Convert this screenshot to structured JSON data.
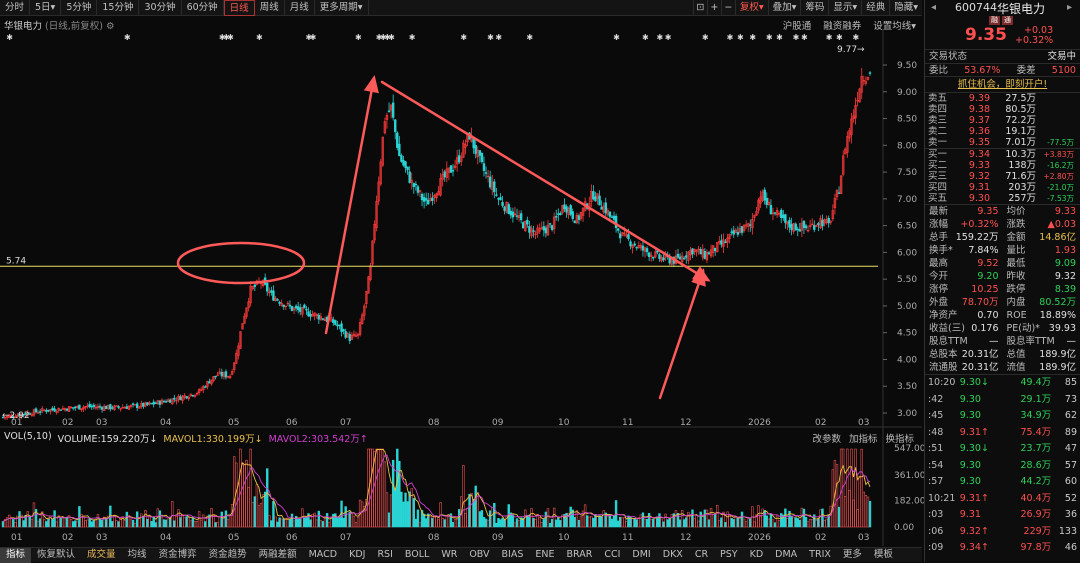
{
  "toolbar": {
    "periods": [
      "分时",
      "5日▾",
      "5分钟",
      "15分钟",
      "30分钟",
      "60分钟",
      "日线",
      "周线",
      "月线",
      "更多周期▾"
    ],
    "active_period": "日线",
    "tools": [
      "⊡",
      "+",
      "−",
      "复权▾",
      "叠加▾",
      "筹码",
      "显示▾",
      "经典",
      "隐藏▾"
    ],
    "tool_icons": [
      "copy-icon",
      "zoom-in-icon",
      "zoom-out-icon",
      "",
      "",
      "",
      "",
      "",
      ""
    ]
  },
  "chart": {
    "title": "华银电力",
    "subtitle": "(日线,前复权)",
    "links": [
      "沪股通",
      "融资融券",
      "设置均线▾"
    ],
    "y_ticks": [
      "9.50",
      "9.00",
      "8.50",
      "8.00",
      "7.50",
      "7.00",
      "6.50",
      "6.00",
      "5.50",
      "5.00",
      "4.50",
      "4.00",
      "3.50",
      "3.00"
    ],
    "x_ticks": [
      "01",
      "02",
      "03",
      "04",
      "05",
      "06",
      "07",
      "08",
      "09",
      "10",
      "11",
      "12",
      "2026",
      "02",
      "03"
    ],
    "hline_label": "5.74",
    "high_label": "9.77→",
    "low_label": "←2.92",
    "event_marker": "✱"
  },
  "volume": {
    "label": "VOL(5,10)",
    "volume_text": "VOLUME:159.220万↓",
    "ma1_text": "MAVOL1:330.199万↓",
    "ma2_text": "MAVOL2:303.542万↑",
    "links": [
      "改参数",
      "加指标",
      "换指标"
    ],
    "y_ticks": [
      "547.00",
      "361.00",
      "182.00",
      "0.00"
    ]
  },
  "indicators": [
    "指标",
    "恢复默认",
    "成交量",
    "均线",
    "资金博弈",
    "资金趋势",
    "两融差额",
    "MACD",
    "KDJ",
    "RSI",
    "BOLL",
    "WR",
    "OBV",
    "BIAS",
    "ENE",
    "BRAR",
    "CCI",
    "DMI",
    "DKX",
    "CR",
    "PSY",
    "KD",
    "DMA",
    "TRIX",
    "更多",
    "模板"
  ],
  "panel": {
    "code": "600744",
    "name": "华银电力",
    "badges": [
      "融",
      "通"
    ],
    "price": "9.35",
    "change": "+0.03",
    "change_pct": "+0.32%",
    "status_label": "交易状态",
    "status_value": "交易中",
    "weibi_label": "委比",
    "weibi_value": "53.67%",
    "weicha_label": "委差",
    "weicha_value": "5100",
    "promo": "抓住机会，即刻开户!",
    "asks": [
      {
        "label": "卖五",
        "price": "9.39",
        "vol": "27.5万",
        "chg": ""
      },
      {
        "label": "卖四",
        "price": "9.38",
        "vol": "80.5万",
        "chg": ""
      },
      {
        "label": "卖三",
        "price": "9.37",
        "vol": "72.2万",
        "chg": ""
      },
      {
        "label": "卖二",
        "price": "9.36",
        "vol": "19.1万",
        "chg": ""
      },
      {
        "label": "卖一",
        "price": "9.35",
        "vol": "7.01万",
        "chg": "-77.5万"
      }
    ],
    "bids": [
      {
        "label": "买一",
        "price": "9.34",
        "vol": "10.3万",
        "chg": "+3.83万"
      },
      {
        "label": "买二",
        "price": "9.33",
        "vol": "138万",
        "chg": "-16.2万"
      },
      {
        "label": "买三",
        "price": "9.32",
        "vol": "71.6万",
        "chg": "+2.80万"
      },
      {
        "label": "买四",
        "price": "9.31",
        "vol": "203万",
        "chg": "-21.0万"
      },
      {
        "label": "买五",
        "price": "9.30",
        "vol": "257万",
        "chg": "-7.53万"
      }
    ],
    "stats": [
      {
        "label": "最新",
        "value": "9.35",
        "color": "r"
      },
      {
        "label": "均价",
        "value": "9.33",
        "color": "r"
      },
      {
        "label": "涨幅",
        "value": "+0.32%",
        "color": "r"
      },
      {
        "label": "涨跌",
        "value": "▲0.03",
        "color": "r"
      },
      {
        "label": "总手",
        "value": "159.22万",
        "color": "w"
      },
      {
        "label": "金额",
        "value": "14.86亿",
        "color": "y"
      },
      {
        "label": "换手*",
        "value": "7.84%",
        "color": "w"
      },
      {
        "label": "量比",
        "value": "1.93",
        "color": "r"
      },
      {
        "label": "最高",
        "value": "9.52",
        "color": "r"
      },
      {
        "label": "最低",
        "value": "9.09",
        "color": "g"
      },
      {
        "label": "今开",
        "value": "9.20",
        "color": "g"
      },
      {
        "label": "昨收",
        "value": "9.32",
        "color": "w"
      },
      {
        "label": "涨停",
        "value": "10.25",
        "color": "r"
      },
      {
        "label": "跌停",
        "value": "8.39",
        "color": "g"
      },
      {
        "label": "外盘",
        "value": "78.70万",
        "color": "r"
      },
      {
        "label": "内盘",
        "value": "80.52万",
        "color": "g"
      },
      {
        "label": "净资产",
        "value": "0.70",
        "color": "w"
      },
      {
        "label": "ROE",
        "value": "18.89%",
        "color": "w"
      },
      {
        "label": "收益(三)",
        "value": "0.176",
        "color": "w"
      },
      {
        "label": "PE(动)*",
        "value": "39.93",
        "color": "w"
      },
      {
        "label": "股息TTM",
        "value": "—",
        "color": "w"
      },
      {
        "label": "股息率TTM",
        "value": "—",
        "color": "w"
      },
      {
        "label": "总股本",
        "value": "20.31亿",
        "color": "w"
      },
      {
        "label": "总值",
        "value": "189.9亿",
        "color": "w"
      },
      {
        "label": "流通股",
        "value": "20.31亿",
        "color": "w"
      },
      {
        "label": "流值",
        "value": "189.9亿",
        "color": "w"
      }
    ],
    "ticks": [
      {
        "time": "10:20",
        "price": "9.30",
        "arrow": "↓",
        "pc": "g",
        "vol": "49.4万",
        "vc": "g",
        "num": "85"
      },
      {
        "time": ":42",
        "price": "9.30",
        "arrow": "",
        "pc": "g",
        "vol": "29.1万",
        "vc": "g",
        "num": "73"
      },
      {
        "time": ":45",
        "price": "9.30",
        "arrow": "",
        "pc": "g",
        "vol": "34.9万",
        "vc": "g",
        "num": "62"
      },
      {
        "time": ":48",
        "price": "9.31",
        "arrow": "↑",
        "pc": "r",
        "vol": "75.4万",
        "vc": "r",
        "num": "89"
      },
      {
        "time": ":51",
        "price": "9.30",
        "arrow": "↓",
        "pc": "g",
        "vol": "23.7万",
        "vc": "g",
        "num": "47"
      },
      {
        "time": ":54",
        "price": "9.30",
        "arrow": "",
        "pc": "g",
        "vol": "28.6万",
        "vc": "g",
        "num": "57"
      },
      {
        "time": ":57",
        "price": "9.30",
        "arrow": "",
        "pc": "g",
        "vol": "44.2万",
        "vc": "g",
        "num": "60"
      },
      {
        "time": "10:21",
        "price": "9.31",
        "arrow": "↑",
        "pc": "r",
        "vol": "40.4万",
        "vc": "r",
        "num": "52"
      },
      {
        "time": ":03",
        "price": "9.31",
        "arrow": "",
        "pc": "r",
        "vol": "26.9万",
        "vc": "r",
        "num": "36"
      },
      {
        "time": ":06",
        "price": "9.32",
        "arrow": "↑",
        "pc": "r",
        "vol": "229万",
        "vc": "r",
        "num": "133"
      },
      {
        "time": ":09",
        "price": "9.34",
        "arrow": "↑",
        "pc": "r",
        "vol": "97.8万",
        "vc": "r",
        "num": "46"
      }
    ]
  },
  "colors": {
    "up": "#ff3b3b",
    "down": "#2ad4d4",
    "ma5": "#f0f0f0",
    "ma10": "#e8c040",
    "ma20": "#d040d0",
    "annotation": "#ff5a5a",
    "hline": "#e8e060"
  }
}
